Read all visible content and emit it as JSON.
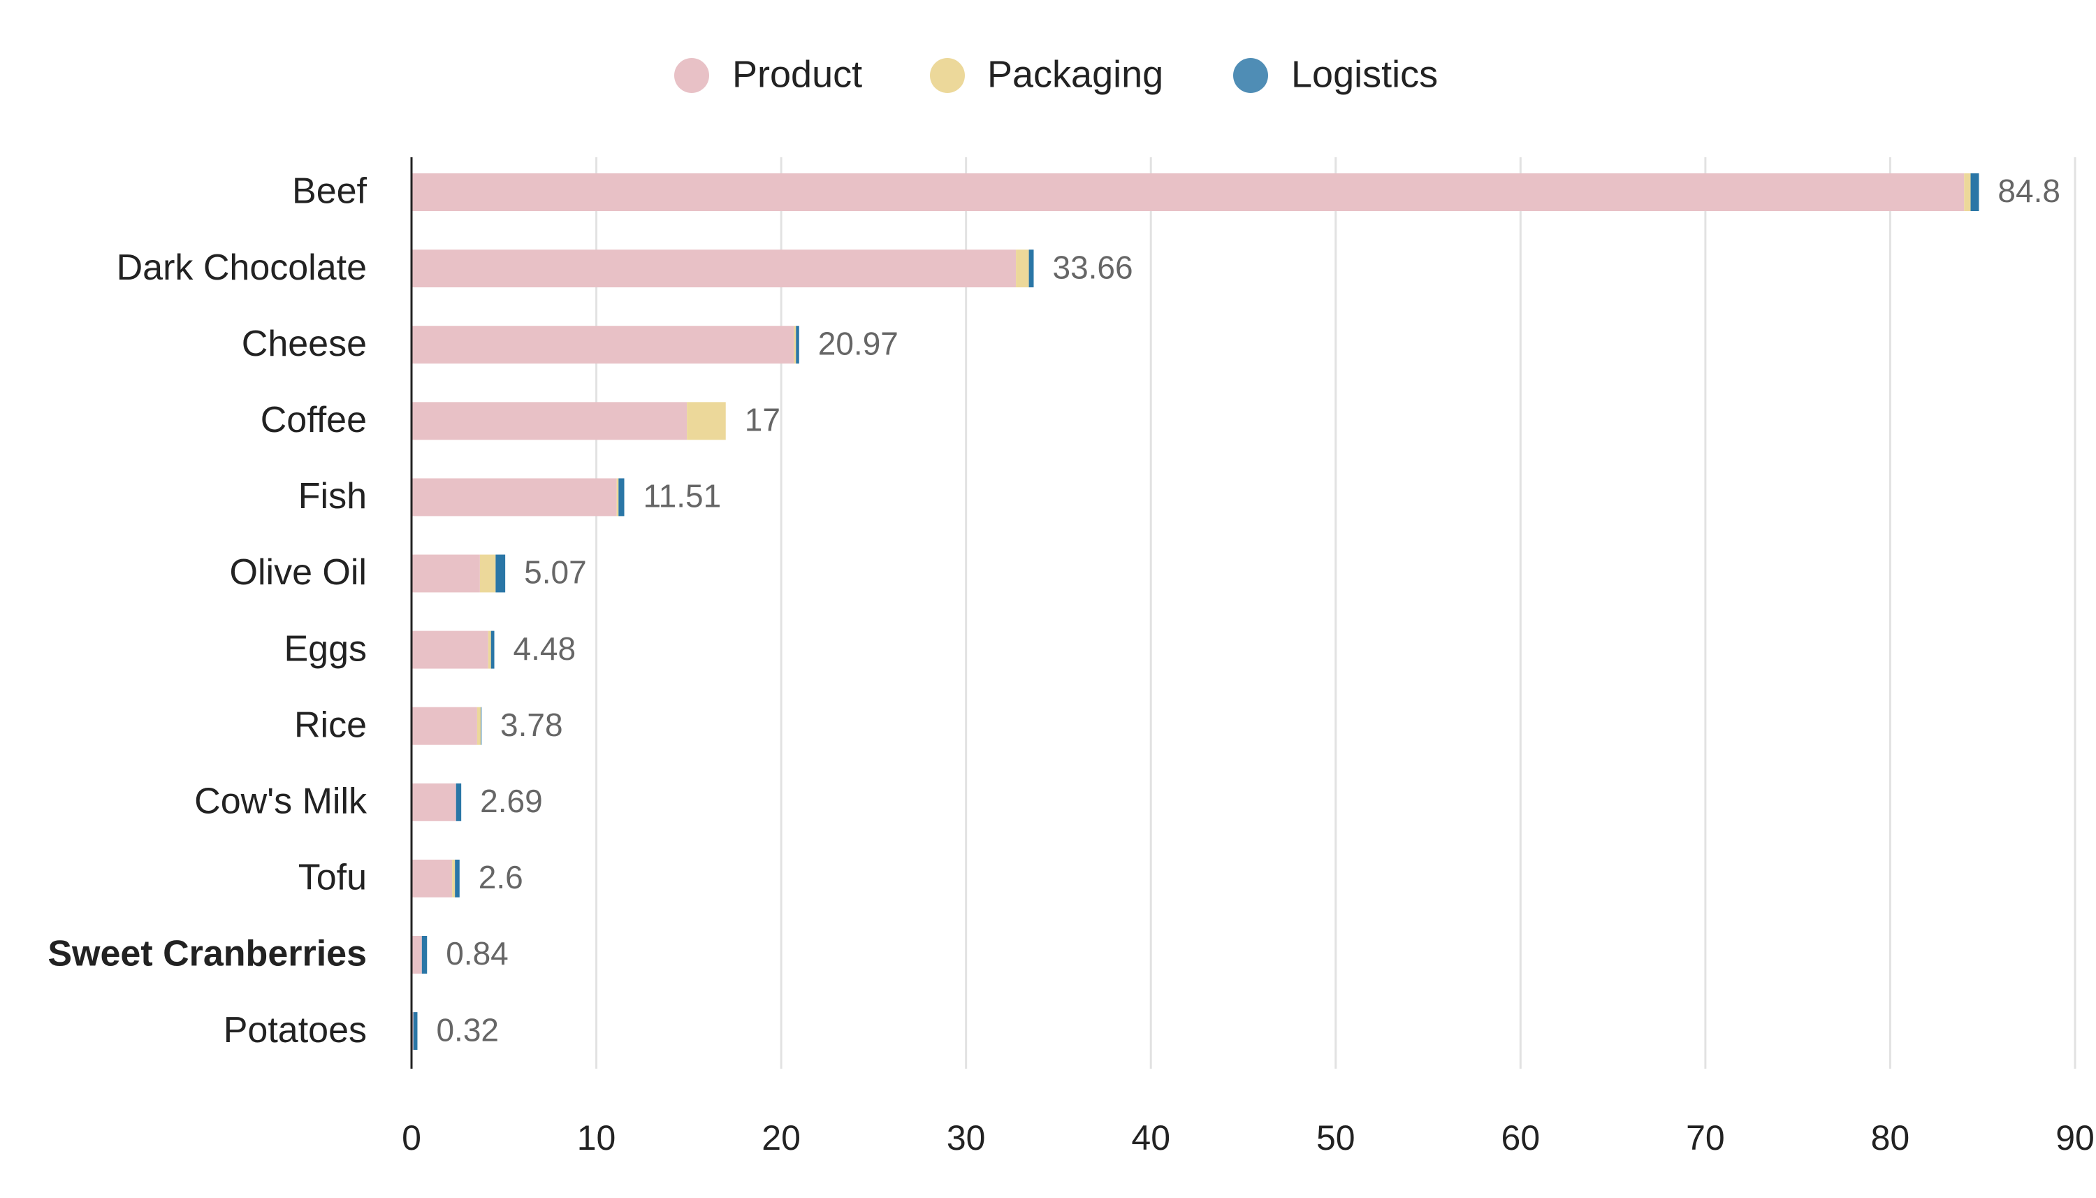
{
  "chart_data": {
    "type": "bar",
    "orientation": "horizontal",
    "stacked": true,
    "categories": [
      "Beef",
      "Dark Chocolate",
      "Cheese",
      "Coffee",
      "Fish",
      "Olive Oil",
      "Eggs",
      "Rice",
      "Cow's Milk",
      "Tofu",
      "Sweet Cranberries",
      "Potatoes"
    ],
    "highlighted_category": "Sweet Cranberries",
    "totals": [
      "84.8",
      "33.66",
      "20.97",
      "17",
      "11.51",
      "5.07",
      "4.48",
      "3.78",
      "2.69",
      "2.6",
      "0.84",
      "0.32"
    ],
    "series": [
      {
        "name": "Product",
        "color": "#e8c1c6",
        "values": [
          84.0,
          32.7,
          20.7,
          14.9,
          11.1,
          3.7,
          4.15,
          3.55,
          2.41,
          2.2,
          0.56,
          0.1
        ]
      },
      {
        "name": "Packaging",
        "color": "#ecd89a",
        "values": [
          0.35,
          0.7,
          0.1,
          2.1,
          0.1,
          0.85,
          0.15,
          0.2,
          0.0,
          0.15,
          0.0,
          0.0
        ]
      },
      {
        "name": "Logistics",
        "color": "#2a76a6",
        "values": [
          0.45,
          0.26,
          0.17,
          0.0,
          0.31,
          0.52,
          0.18,
          0.03,
          0.28,
          0.25,
          0.28,
          0.22
        ]
      }
    ],
    "legend_colors": [
      "#e8c1c6",
      "#ecd89a",
      "#4f8db5"
    ],
    "xlim": [
      0,
      90
    ],
    "xticks": [
      "0",
      "10",
      "20",
      "30",
      "40",
      "50",
      "60",
      "70",
      "80",
      "90"
    ],
    "grid": "vertical",
    "legend_position": "top-center",
    "title": "",
    "xlabel": "",
    "ylabel": ""
  }
}
